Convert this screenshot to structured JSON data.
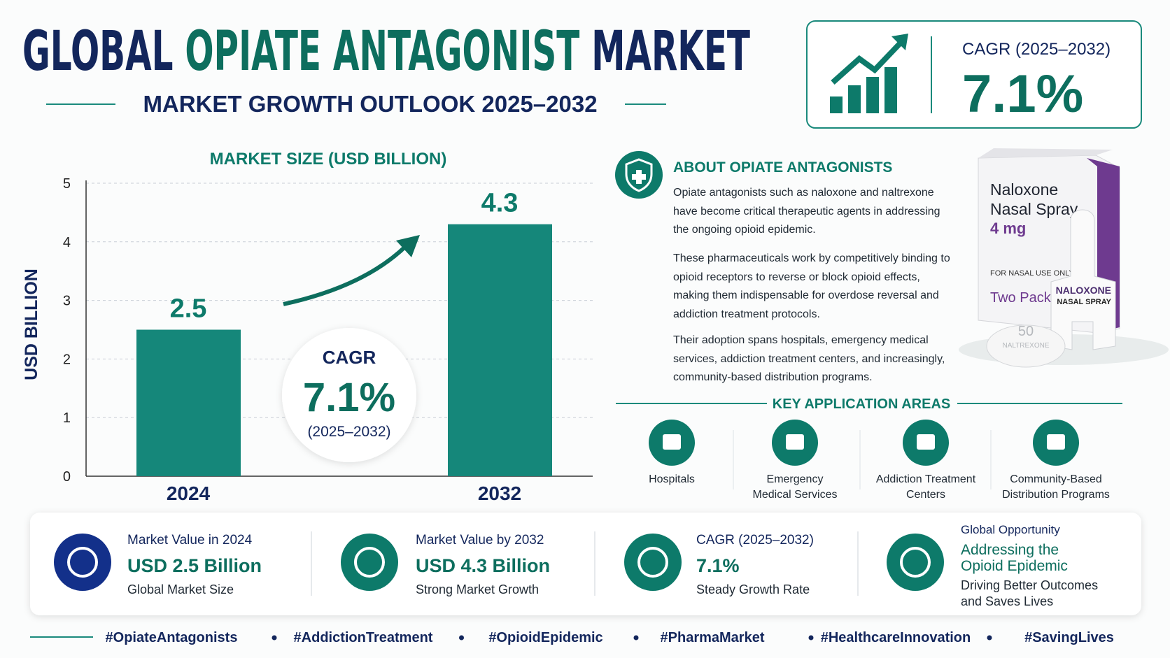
{
  "header": {
    "title": [
      "GLOBAL",
      "OPIATE ANTAGONIST",
      "MARKET"
    ],
    "subtitle": "MARKET GROWTH OUTLOOK 2025–2032"
  },
  "cagr_box": {
    "label": "CAGR (2025–2032)",
    "value": "7.1%"
  },
  "chart_data": {
    "type": "bar",
    "title": "MARKET SIZE (USD BILLION)",
    "y_label": "USD BILLION",
    "categories": [
      "2024",
      "2032"
    ],
    "values": [
      2.5,
      4.3
    ],
    "color": "#15877a",
    "ylim": [
      0,
      5
    ],
    "yticks": [
      0,
      1,
      2,
      3,
      4,
      5
    ],
    "grid": true,
    "callout": {
      "label": "CAGR",
      "value": "7.1%",
      "period": "(2025–2032)"
    }
  },
  "about": {
    "heading": "ABOUT OPIATE ANTAGONISTS",
    "paragraphs": [
      "Opiate antagonists such as naloxone and naltrexone have become critical therapeutic agents in addressing the ongoing opioid epidemic.",
      "These pharmaceuticals work by competitively binding to opioid receptors to reverse or block opioid effects, making them indispensable for overdose reversal and addiction treatment protocols.",
      "Their adoption spans hospitals, emergency medical services, addiction treatment centers, and increasingly, community-based distribution programs."
    ]
  },
  "product": {
    "box_lines": [
      "Naloxone",
      "Nasal Spray"
    ],
    "dose": "4 mg",
    "route": "FOR NASAL USE ONLY",
    "pack": "Two Pack",
    "device_lines": [
      "NALOXONE",
      "NASAL SPRAY"
    ],
    "tablet_lines": [
      "50",
      "NALTREXONE"
    ]
  },
  "applications": {
    "heading": "KEY APPLICATION AREAS",
    "items": [
      [
        "Hospitals"
      ],
      [
        "Emergency",
        "Medical Services"
      ],
      [
        "Addiction Treatment",
        "Centers"
      ],
      [
        "Community-Based",
        "Distribution Programs"
      ]
    ]
  },
  "highlights": [
    {
      "label": "Market Value in 2024",
      "value": [
        "USD 2.5 Billion"
      ],
      "note": [
        "Global Market Size"
      ]
    },
    {
      "label": "Market Value by 2032",
      "value": [
        "USD 4.3 Billion"
      ],
      "note": [
        "Strong Market Growth"
      ]
    },
    {
      "label": "CAGR (2025–2032)",
      "value": [
        "7.1%"
      ],
      "note": [
        "Steady Growth Rate"
      ]
    },
    {
      "label": "Global Opportunity",
      "value": [
        "Addressing the",
        "Opioid Epidemic"
      ],
      "note": [
        "Driving Better Outcomes",
        "and Saves Lives"
      ]
    }
  ],
  "hashtags": [
    "#OpiateAntagonists",
    "#AddictionTreatment",
    "#OpioidEpidemic",
    "#PharmaMarket",
    "#HealthcareInnovation",
    "#SavingLives"
  ]
}
